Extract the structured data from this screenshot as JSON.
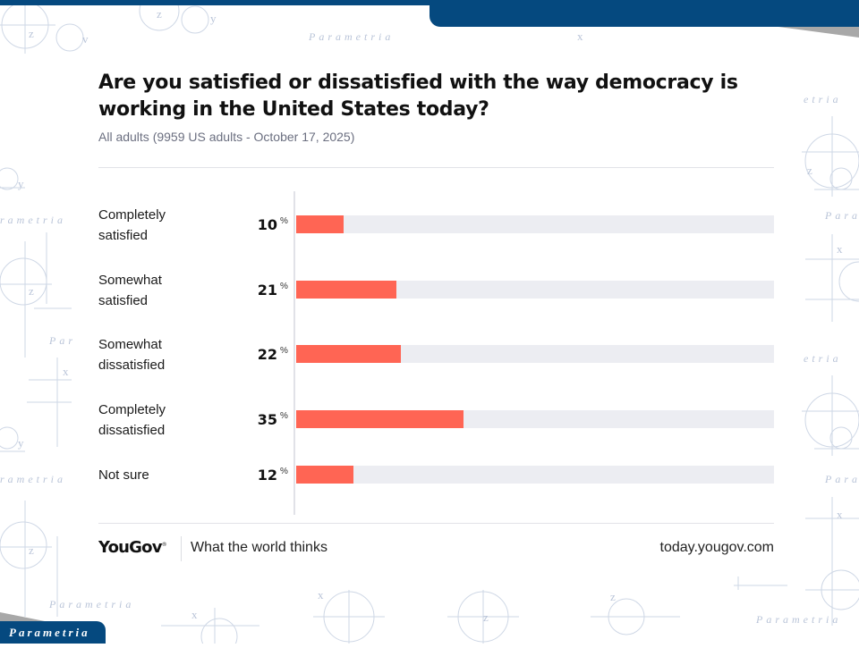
{
  "branding": {
    "watermark_text": "Parametria",
    "badge_label": "Parametria",
    "accent_blue": "#05497f"
  },
  "footer": {
    "logo": "YouGov",
    "tagline": "What the world thinks",
    "url": "today.yougov.com"
  },
  "chart_data": {
    "type": "bar",
    "orientation": "horizontal",
    "title": "Are you satisfied or dissatisfied with the way democracy is working in the United States today?",
    "subtitle": "All adults (9959 US adults - October 17, 2025)",
    "categories": [
      "Completely satisfied",
      "Somewhat satisfied",
      "Somewhat dissatisfied",
      "Completely dissatisfied",
      "Not sure"
    ],
    "category_lines": [
      [
        "Completely",
        "satisfied"
      ],
      [
        "Somewhat",
        "satisfied"
      ],
      [
        "Somewhat",
        "dissatisfied"
      ],
      [
        "Completely",
        "dissatisfied"
      ],
      [
        "Not sure"
      ]
    ],
    "values": [
      10,
      21,
      22,
      35,
      12
    ],
    "value_suffix": "%",
    "xlim": [
      0,
      100
    ],
    "bar_color": "#ff6554",
    "track_color": "#ecedf2",
    "xlabel": "",
    "ylabel": "",
    "grid": false,
    "legend": "none"
  }
}
